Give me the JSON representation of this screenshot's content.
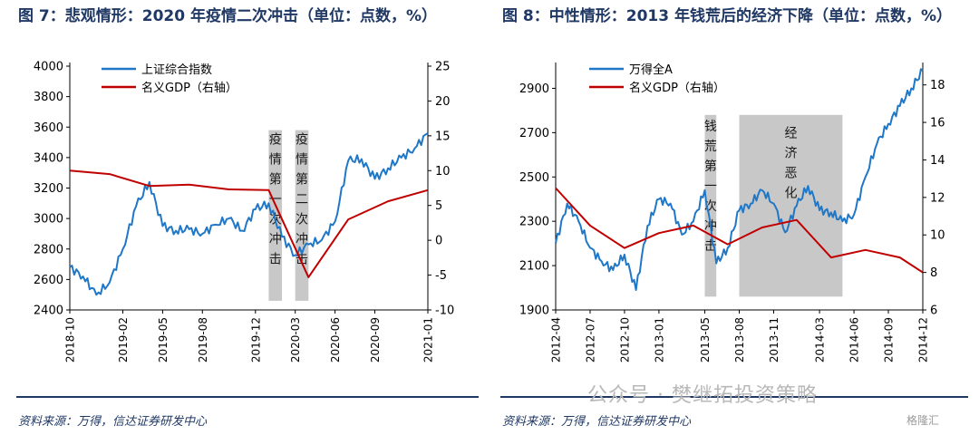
{
  "colors": {
    "index_line": "#1f77c8",
    "gdp_line": "#c00000",
    "shade": "#c8c8c8",
    "axis": "#000000",
    "navy": "#1f3864"
  },
  "left": {
    "title": "图 7：悲观情形：2020 年疫情二次冲击（单位：点数，%）",
    "source": "资料来源：万得，信达证券研发中心",
    "annotations": [
      "疫情第一次冲击",
      "疫情第二次冲击"
    ]
  },
  "right": {
    "title": "图 8：中性情形：2013 年钱荒后的经济下降（单位：点数，%）",
    "source": "资料来源：万得，信达证券研发中心",
    "annotations": [
      "钱荒第一次冲击",
      "经济恶化"
    ]
  },
  "watermark": "公众号 · 樊继拓投资策略",
  "corner_logo": "格隆汇",
  "chart_data": [
    {
      "type": "line",
      "x_ticks": [
        "2018-10",
        "2019-02",
        "2019-05",
        "2019-08",
        "2019-12",
        "2020-03",
        "2020-06",
        "2020-09",
        "2021-01"
      ],
      "ylim": [
        2400,
        4000
      ],
      "y_ticks": [
        2400,
        2600,
        2800,
        3000,
        3200,
        3400,
        3600,
        3800,
        4000
      ],
      "y2lim": [
        -10,
        25
      ],
      "y2_ticks": [
        -10,
        -5,
        0,
        5,
        10,
        15,
        20,
        25
      ],
      "legend": [
        "上证综合指数",
        "名义GDP（右轴）"
      ],
      "legend_position": "top-left",
      "series": [
        {
          "name": "上证综合指数",
          "axis": "left",
          "x": [
            "2018-10",
            "2018-11",
            "2018-12",
            "2019-01",
            "2019-02",
            "2019-03",
            "2019-04",
            "2019-05",
            "2019-06",
            "2019-07",
            "2019-08",
            "2019-09",
            "2019-10",
            "2019-11",
            "2019-12",
            "2020-01",
            "2020-02",
            "2020-03",
            "2020-04",
            "2020-05",
            "2020-06",
            "2020-07",
            "2020-08",
            "2020-09",
            "2020-10",
            "2020-11",
            "2020-12",
            "2021-01"
          ],
          "values": [
            2680,
            2620,
            2500,
            2580,
            2800,
            3080,
            3240,
            2950,
            2920,
            2930,
            2900,
            2960,
            3000,
            2920,
            3060,
            3100,
            2880,
            2760,
            2830,
            2860,
            2980,
            3380,
            3390,
            3260,
            3330,
            3400,
            3460,
            3560
          ]
        },
        {
          "name": "名义GDP（右轴）",
          "axis": "right",
          "x": [
            "2018-10",
            "2019-01",
            "2019-04",
            "2019-07",
            "2019-10",
            "2020-01",
            "2020-04",
            "2020-07",
            "2020-10",
            "2021-01"
          ],
          "values": [
            10.0,
            9.5,
            7.8,
            8.0,
            7.3,
            7.2,
            -5.3,
            3.0,
            5.6,
            7.2
          ]
        }
      ]
    },
    {
      "type": "line",
      "x_ticks": [
        "2012-04",
        "2012-07",
        "2012-10",
        "2013-01",
        "2013-05",
        "2013-08",
        "2013-11",
        "2014-03",
        "2014-06",
        "2014-09",
        "2014-12"
      ],
      "ylim": [
        1900,
        3000
      ],
      "y_ticks": [
        1900,
        2100,
        2300,
        2500,
        2700,
        2900
      ],
      "y2lim": [
        6,
        19
      ],
      "y2_ticks": [
        6,
        8,
        10,
        12,
        14,
        16,
        18
      ],
      "legend": [
        "万得全A",
        "名义GDP（右轴）"
      ],
      "legend_position": "top-left",
      "series": [
        {
          "name": "万得全A",
          "axis": "left",
          "x": [
            "2012-04",
            "2012-05",
            "2012-06",
            "2012-07",
            "2012-08",
            "2012-09",
            "2012-10",
            "2012-11",
            "2012-12",
            "2013-01",
            "2013-02",
            "2013-03",
            "2013-04",
            "2013-05",
            "2013-06",
            "2013-07",
            "2013-08",
            "2013-09",
            "2013-10",
            "2013-11",
            "2013-12",
            "2014-01",
            "2014-02",
            "2014-03",
            "2014-04",
            "2014-05",
            "2014-06",
            "2014-07",
            "2014-08",
            "2014-09",
            "2014-10",
            "2014-11",
            "2014-12"
          ],
          "values": [
            2200,
            2380,
            2300,
            2180,
            2120,
            2080,
            2150,
            1990,
            2280,
            2400,
            2380,
            2240,
            2300,
            2440,
            2110,
            2180,
            2350,
            2380,
            2440,
            2380,
            2250,
            2370,
            2460,
            2350,
            2340,
            2300,
            2330,
            2500,
            2650,
            2740,
            2820,
            2900,
            2980
          ]
        },
        {
          "name": "名义GDP（右轴）",
          "axis": "right",
          "x": [
            "2012-04",
            "2012-07",
            "2012-10",
            "2013-01",
            "2013-04",
            "2013-07",
            "2013-10",
            "2014-01",
            "2014-04",
            "2014-07",
            "2014-10",
            "2014-12"
          ],
          "values": [
            12.5,
            10.5,
            9.3,
            10.1,
            10.5,
            9.5,
            10.4,
            10.8,
            8.8,
            9.2,
            8.8,
            8.0
          ]
        }
      ]
    }
  ]
}
